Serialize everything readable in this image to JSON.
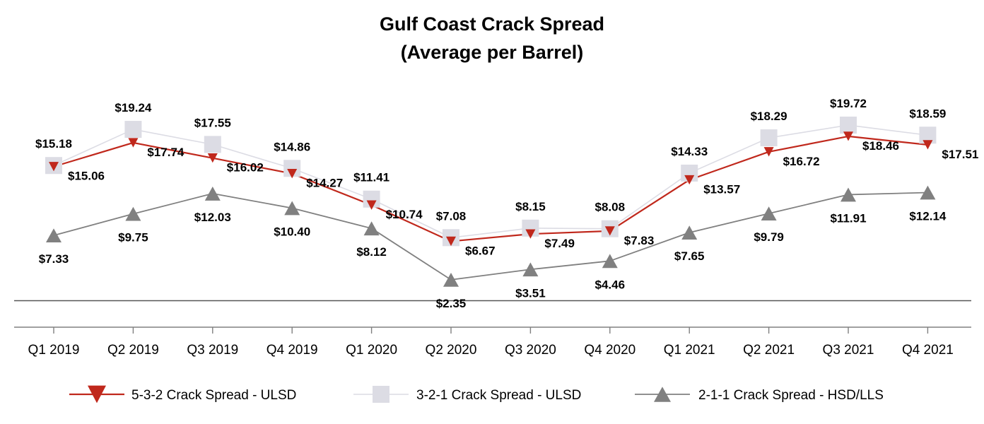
{
  "chart_data": {
    "type": "line",
    "title": "Gulf Coast Crack Spread",
    "subtitle": "(Average per Barrel)",
    "xlabel": "",
    "ylabel": "",
    "ylim": [
      -3,
      25
    ],
    "grid": false,
    "legend_position": "bottom",
    "categories": [
      "Q1 2019",
      "Q2 2019",
      "Q3 2019",
      "Q4 2019",
      "Q1 2020",
      "Q2 2020",
      "Q3 2020",
      "Q4 2020",
      "Q1 2021",
      "Q2 2021",
      "Q3 2021",
      "Q4 2021"
    ],
    "series": [
      {
        "name": "5-3-2 Crack Spread - ULSD",
        "marker": "triangle-down",
        "color": "#c0281c",
        "values": [
          15.06,
          17.74,
          16.02,
          14.27,
          10.74,
          6.67,
          7.49,
          7.83,
          13.57,
          16.72,
          18.46,
          17.51
        ],
        "labels": [
          "$15.06",
          "$17.74",
          "$16.02",
          "$14.27",
          "$10.74",
          "$6.67",
          "$7.49",
          "$7.83",
          "$13.57",
          "$16.72",
          "$18.46",
          "$17.51"
        ]
      },
      {
        "name": "3-2-1 Crack Spread - ULSD",
        "marker": "square",
        "color": "#dcdce4",
        "values": [
          15.18,
          19.24,
          17.55,
          14.86,
          11.41,
          7.08,
          8.15,
          8.08,
          14.33,
          18.29,
          19.72,
          18.59
        ],
        "labels": [
          "$15.18",
          "$19.24",
          "$17.55",
          "$14.86",
          "$11.41",
          "$7.08",
          "$8.15",
          "$8.08",
          "$14.33",
          "$18.29",
          "$19.72",
          "$18.59"
        ]
      },
      {
        "name": "2-1-1 Crack Spread - HSD/LLS",
        "marker": "triangle-up",
        "color": "#808080",
        "values": [
          7.33,
          9.75,
          12.03,
          10.4,
          8.12,
          2.35,
          3.51,
          4.46,
          7.65,
          9.79,
          11.91,
          12.14
        ],
        "labels": [
          "$7.33",
          "$9.75",
          "$12.03",
          "$10.40",
          "$8.12",
          "$2.35",
          "$3.51",
          "$4.46",
          "$7.65",
          "$9.79",
          "$11.91",
          "$12.14"
        ]
      }
    ]
  },
  "colors": {
    "axis_line": "#808080",
    "reference_line": "#555555",
    "background": "#ffffff"
  }
}
